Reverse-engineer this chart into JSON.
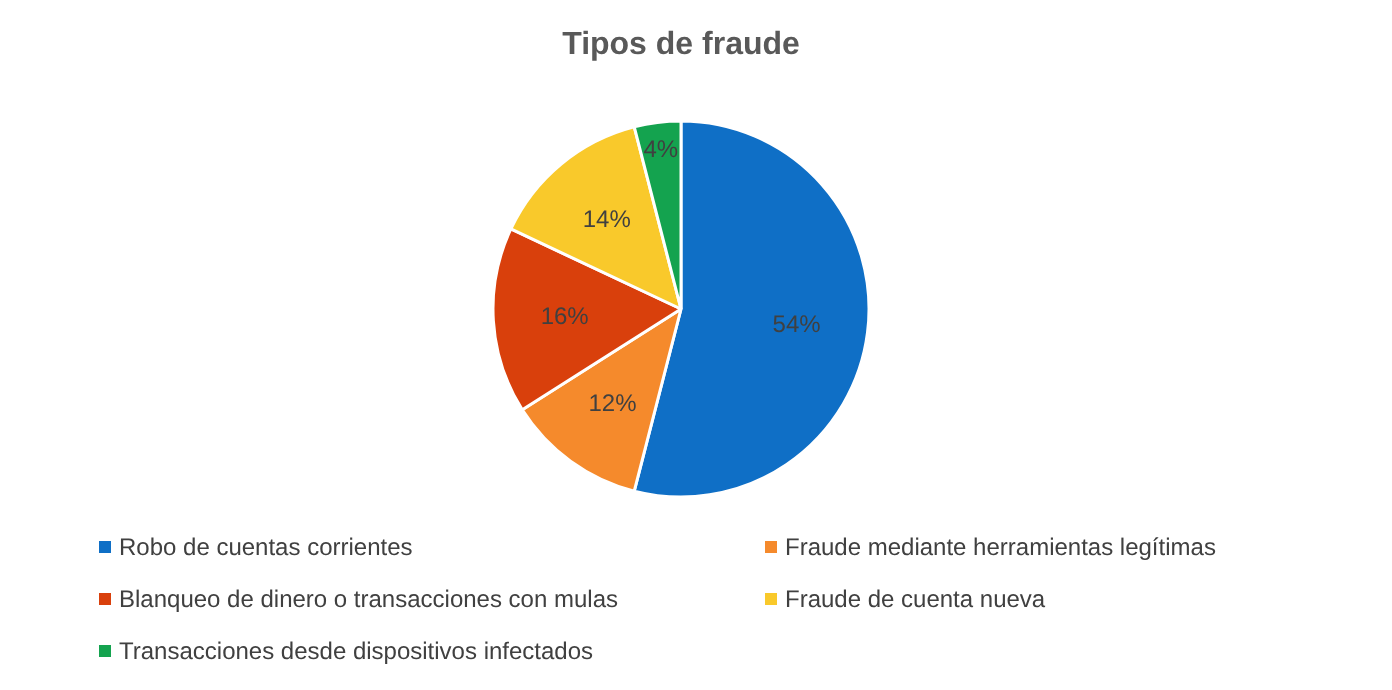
{
  "chart_data": {
    "type": "pie",
    "title": "Tipos de fraude",
    "categories": [
      "Robo de cuentas corrientes",
      "Fraude mediante herramientas  legítimas",
      "Blanqueo de dinero o transacciones con mulas",
      "Fraude de cuenta nueva",
      "Transacciones desde dispositivos infectados"
    ],
    "values": [
      54,
      12,
      16,
      14,
      4
    ],
    "value_labels": [
      "54%",
      "12%",
      "16%",
      "14%",
      "4%"
    ],
    "colors": [
      "#0f6fc6",
      "#f58a2c",
      "#d9400c",
      "#f9c92b",
      "#14a34f"
    ],
    "legend": "bottom"
  }
}
